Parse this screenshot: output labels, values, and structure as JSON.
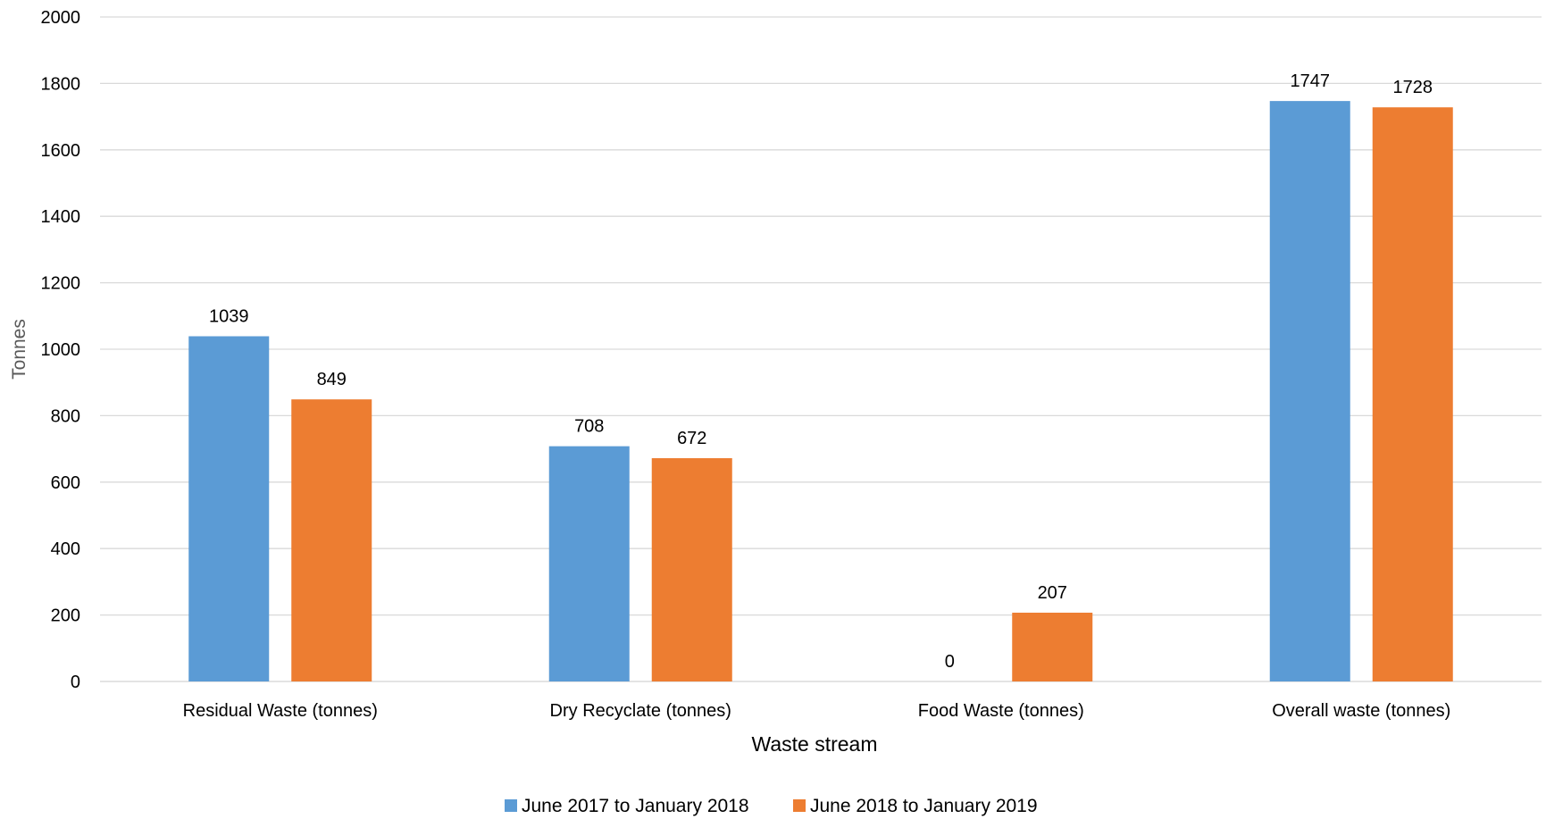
{
  "chart_data": {
    "type": "bar",
    "title": "",
    "xlabel": "Waste stream",
    "ylabel": "Tonnes",
    "ylim": [
      0,
      2000
    ],
    "yticks": [
      0,
      200,
      400,
      600,
      800,
      1000,
      1200,
      1400,
      1600,
      1800,
      2000
    ],
    "grid": true,
    "legend_position": "bottom",
    "categories": [
      "Residual Waste (tonnes)",
      "Dry Recyclate (tonnes)",
      "Food Waste (tonnes)",
      "Overall waste (tonnes)"
    ],
    "series": [
      {
        "name": "June 2017 to January 2018",
        "color": "#5B9BD5",
        "values": [
          1039,
          708,
          0,
          1747
        ]
      },
      {
        "name": "June 2018 to January 2019",
        "color": "#ED7D31",
        "values": [
          849,
          672,
          207,
          1728
        ]
      }
    ]
  }
}
